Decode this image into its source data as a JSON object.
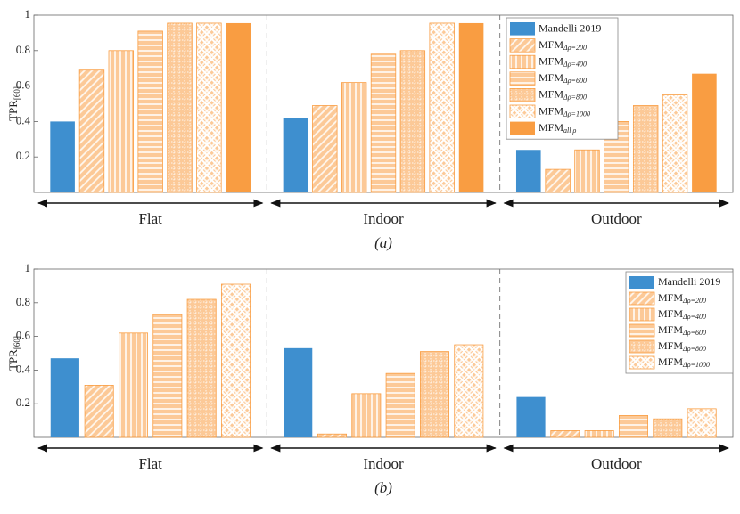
{
  "chart_data": [
    {
      "type": "bar",
      "caption": "(a)",
      "y_label": "TPR",
      "y_label_sub": "[60]",
      "categories": [
        "Flat",
        "Indoor",
        "Outdoor"
      ],
      "ylim": [
        0,
        1
      ],
      "yticks": [
        0.2,
        0.4,
        0.6,
        0.8,
        1
      ],
      "series": [
        {
          "name": "Mandelli 2019",
          "color": "#3e8fcf",
          "pattern": "solid",
          "values": [
            0.4,
            0.42,
            0.24
          ]
        },
        {
          "name": "MFM",
          "subscript": "Δρ=200",
          "color": "#f99d42",
          "pattern": "diagonal",
          "values": [
            0.69,
            0.49,
            0.13
          ]
        },
        {
          "name": "MFM",
          "subscript": "Δρ=400",
          "color": "#f99d42",
          "pattern": "vertical",
          "values": [
            0.8,
            0.62,
            0.24
          ]
        },
        {
          "name": "MFM",
          "subscript": "Δρ=600",
          "color": "#f99d42",
          "pattern": "horizontal",
          "values": [
            0.91,
            0.78,
            0.4
          ]
        },
        {
          "name": "MFM",
          "subscript": "Δρ=800",
          "color": "#f99d42",
          "pattern": "dotted",
          "values": [
            0.955,
            0.8,
            0.49
          ]
        },
        {
          "name": "MFM",
          "subscript": "Δρ=1000",
          "color": "#f99d42",
          "pattern": "crosshatch",
          "values": [
            0.955,
            0.955,
            0.55
          ]
        },
        {
          "name": "MFM",
          "subscript": "all ρ",
          "color": "#f99d42",
          "pattern": "solid",
          "values": [
            0.955,
            0.955,
            0.67
          ]
        }
      ]
    },
    {
      "type": "bar",
      "caption": "(b)",
      "y_label": "TPR",
      "y_label_sub": "[60]",
      "categories": [
        "Flat",
        "Indoor",
        "Outdoor"
      ],
      "ylim": [
        0,
        1
      ],
      "yticks": [
        0.2,
        0.4,
        0.6,
        0.8,
        1
      ],
      "series": [
        {
          "name": "Mandelli 2019",
          "color": "#3e8fcf",
          "pattern": "solid",
          "values": [
            0.47,
            0.53,
            0.24
          ]
        },
        {
          "name": "MFM",
          "subscript": "Δρ=200",
          "color": "#f99d42",
          "pattern": "diagonal",
          "values": [
            0.31,
            0.02,
            0.04
          ]
        },
        {
          "name": "MFM",
          "subscript": "Δρ=400",
          "color": "#f99d42",
          "pattern": "vertical",
          "values": [
            0.62,
            0.26,
            0.04
          ]
        },
        {
          "name": "MFM",
          "subscript": "Δρ=600",
          "color": "#f99d42",
          "pattern": "horizontal",
          "values": [
            0.73,
            0.38,
            0.13
          ]
        },
        {
          "name": "MFM",
          "subscript": "Δρ=800",
          "color": "#f99d42",
          "pattern": "dotted",
          "values": [
            0.82,
            0.51,
            0.11
          ]
        },
        {
          "name": "MFM",
          "subscript": "Δρ=1000",
          "color": "#f99d42",
          "pattern": "crosshatch",
          "values": [
            0.91,
            0.55,
            0.17
          ]
        }
      ]
    }
  ]
}
